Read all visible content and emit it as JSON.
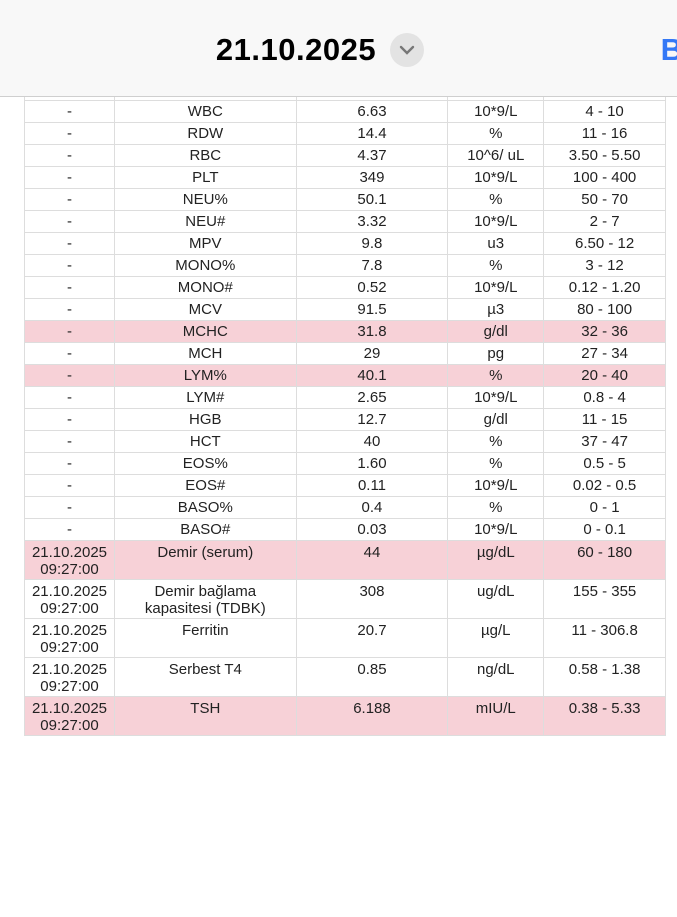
{
  "header": {
    "title": "21.10.2025",
    "dropdown_icon": "chevron-down-icon",
    "right_label": "B"
  },
  "colors": {
    "abnormal_row": "#f7d1d7",
    "accent": "#3478f6"
  },
  "rows": [
    {
      "date": "-",
      "test": "WBC",
      "value": "6.63",
      "unit": "10*9/L",
      "range": "4 - 10",
      "flag": false
    },
    {
      "date": "-",
      "test": "RDW",
      "value": "14.4",
      "unit": "%",
      "range": "11 - 16",
      "flag": false
    },
    {
      "date": "-",
      "test": "RBC",
      "value": "4.37",
      "unit": "10^6/ uL",
      "range": "3.50 - 5.50",
      "flag": false
    },
    {
      "date": "-",
      "test": "PLT",
      "value": "349",
      "unit": "10*9/L",
      "range": "100 - 400",
      "flag": false
    },
    {
      "date": "-",
      "test": "NEU%",
      "value": "50.1",
      "unit": "%",
      "range": "50 - 70",
      "flag": false
    },
    {
      "date": "-",
      "test": "NEU#",
      "value": "3.32",
      "unit": "10*9/L",
      "range": "2 - 7",
      "flag": false
    },
    {
      "date": "-",
      "test": "MPV",
      "value": "9.8",
      "unit": "u3",
      "range": "6.50 - 12",
      "flag": false
    },
    {
      "date": "-",
      "test": "MONO%",
      "value": "7.8",
      "unit": "%",
      "range": "3 - 12",
      "flag": false
    },
    {
      "date": "-",
      "test": "MONO#",
      "value": "0.52",
      "unit": "10*9/L",
      "range": "0.12 - 1.20",
      "flag": false
    },
    {
      "date": "-",
      "test": "MCV",
      "value": "91.5",
      "unit": "µ3",
      "range": "80 - 100",
      "flag": false
    },
    {
      "date": "-",
      "test": "MCHC",
      "value": "31.8",
      "unit": "g/dl",
      "range": "32 - 36",
      "flag": true
    },
    {
      "date": "-",
      "test": "MCH",
      "value": "29",
      "unit": "pg",
      "range": "27 - 34",
      "flag": false
    },
    {
      "date": "-",
      "test": "LYM%",
      "value": "40.1",
      "unit": "%",
      "range": "20 - 40",
      "flag": true
    },
    {
      "date": "-",
      "test": "LYM#",
      "value": "2.65",
      "unit": "10*9/L",
      "range": "0.8 - 4",
      "flag": false
    },
    {
      "date": "-",
      "test": "HGB",
      "value": "12.7",
      "unit": "g/dl",
      "range": "11 - 15",
      "flag": false
    },
    {
      "date": "-",
      "test": "HCT",
      "value": "40",
      "unit": "%",
      "range": "37 - 47",
      "flag": false
    },
    {
      "date": "-",
      "test": "EOS%",
      "value": "1.60",
      "unit": "%",
      "range": "0.5 - 5",
      "flag": false
    },
    {
      "date": "-",
      "test": "EOS#",
      "value": "0.11",
      "unit": "10*9/L",
      "range": "0.02 - 0.5",
      "flag": false
    },
    {
      "date": "-",
      "test": "BASO%",
      "value": "0.4",
      "unit": "%",
      "range": "0 - 1",
      "flag": false
    },
    {
      "date": "-",
      "test": "BASO#",
      "value": "0.03",
      "unit": "10*9/L",
      "range": "0 - 0.1",
      "flag": false
    }
  ],
  "dated_rows": [
    {
      "date": "21.10.2025",
      "time": "09:27:00",
      "test": "Demir (serum)",
      "test2": "",
      "value": "44",
      "unit": "µg/dL",
      "range": "60 - 180",
      "flag": true
    },
    {
      "date": "21.10.2025",
      "time": "09:27:00",
      "test": "Demir bağlama",
      "test2": "kapasitesi (TDBK)",
      "value": "308",
      "unit": "ug/dL",
      "range": "155 - 355",
      "flag": false
    },
    {
      "date": "21.10.2025",
      "time": "09:27:00",
      "test": "Ferritin",
      "test2": "",
      "value": "20.7",
      "unit": "µg/L",
      "range": "11 - 306.8",
      "flag": false
    },
    {
      "date": "21.10.2025",
      "time": "09:27:00",
      "test": "Serbest T4",
      "test2": "",
      "value": "0.85",
      "unit": "ng/dL",
      "range": "0.58 - 1.38",
      "flag": false
    },
    {
      "date": "21.10.2025",
      "time": "09:27:00",
      "test": "TSH",
      "test2": "",
      "value": "6.188",
      "unit": "mIU/L",
      "range": "0.38 - 5.33",
      "flag": true
    }
  ]
}
